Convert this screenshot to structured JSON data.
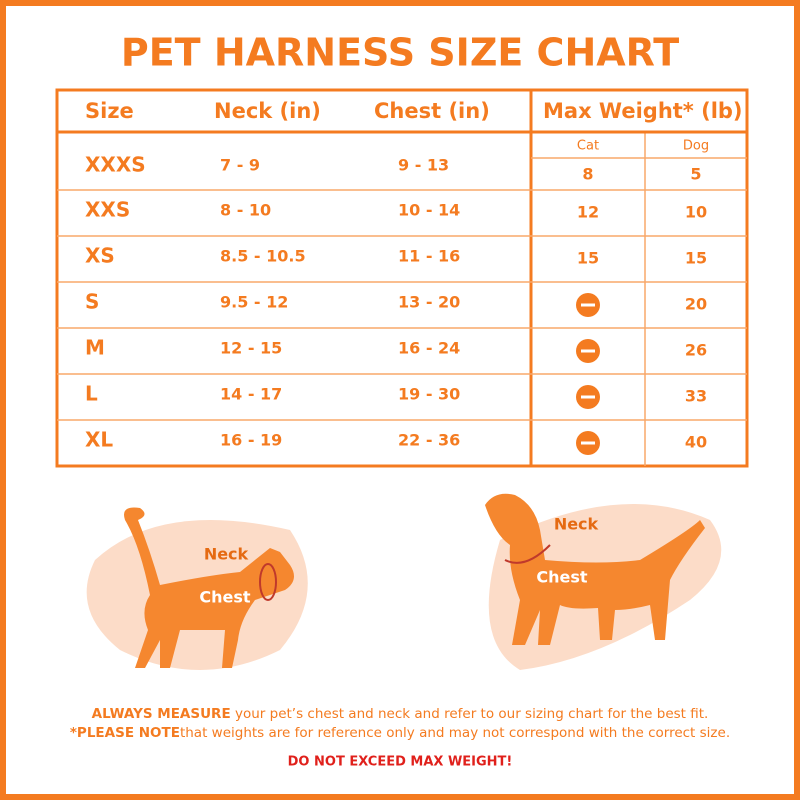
{
  "title": "PET HARNESS SIZE CHART",
  "table": {
    "headers": [
      "Size",
      "Neck (in)",
      "Chest (in)",
      "Max Weight* (lb)"
    ],
    "subheaders": [
      "Cat",
      "Dog"
    ],
    "rows": [
      [
        "XXXS",
        "7 - 9",
        "9 - 13",
        8,
        5
      ],
      [
        "XXS",
        "8 - 10",
        "10 - 14",
        12,
        10
      ],
      [
        "XS",
        "8.5 - 10.5",
        "11 - 16",
        15,
        15
      ],
      [
        "S",
        "9.5 - 12",
        "13 - 20",
        null,
        20
      ],
      [
        "M",
        "12 - 15",
        "16 - 24",
        null,
        26
      ],
      [
        "L",
        "14 - 17",
        "19 - 30",
        null,
        33
      ],
      [
        "XL",
        "16 - 19",
        "22 - 36",
        null,
        40
      ]
    ]
  },
  "cat_labels": {
    "neck": "Neck",
    "chest": "Chest"
  },
  "dog_labels": {
    "neck": "Neck",
    "chest": "Chest"
  },
  "footer": {
    "line1_bold": "ALWAYS MEASURE",
    "line1": " your pet’s chest and neck and refer to our sizing chart for the best fit.",
    "line2_bold": "*PLEASE NOTE",
    "line2": "that weights are for reference only and may not correspond with the correct size.",
    "warning": "DO NOT EXCEED MAX WEIGHT!"
  }
}
